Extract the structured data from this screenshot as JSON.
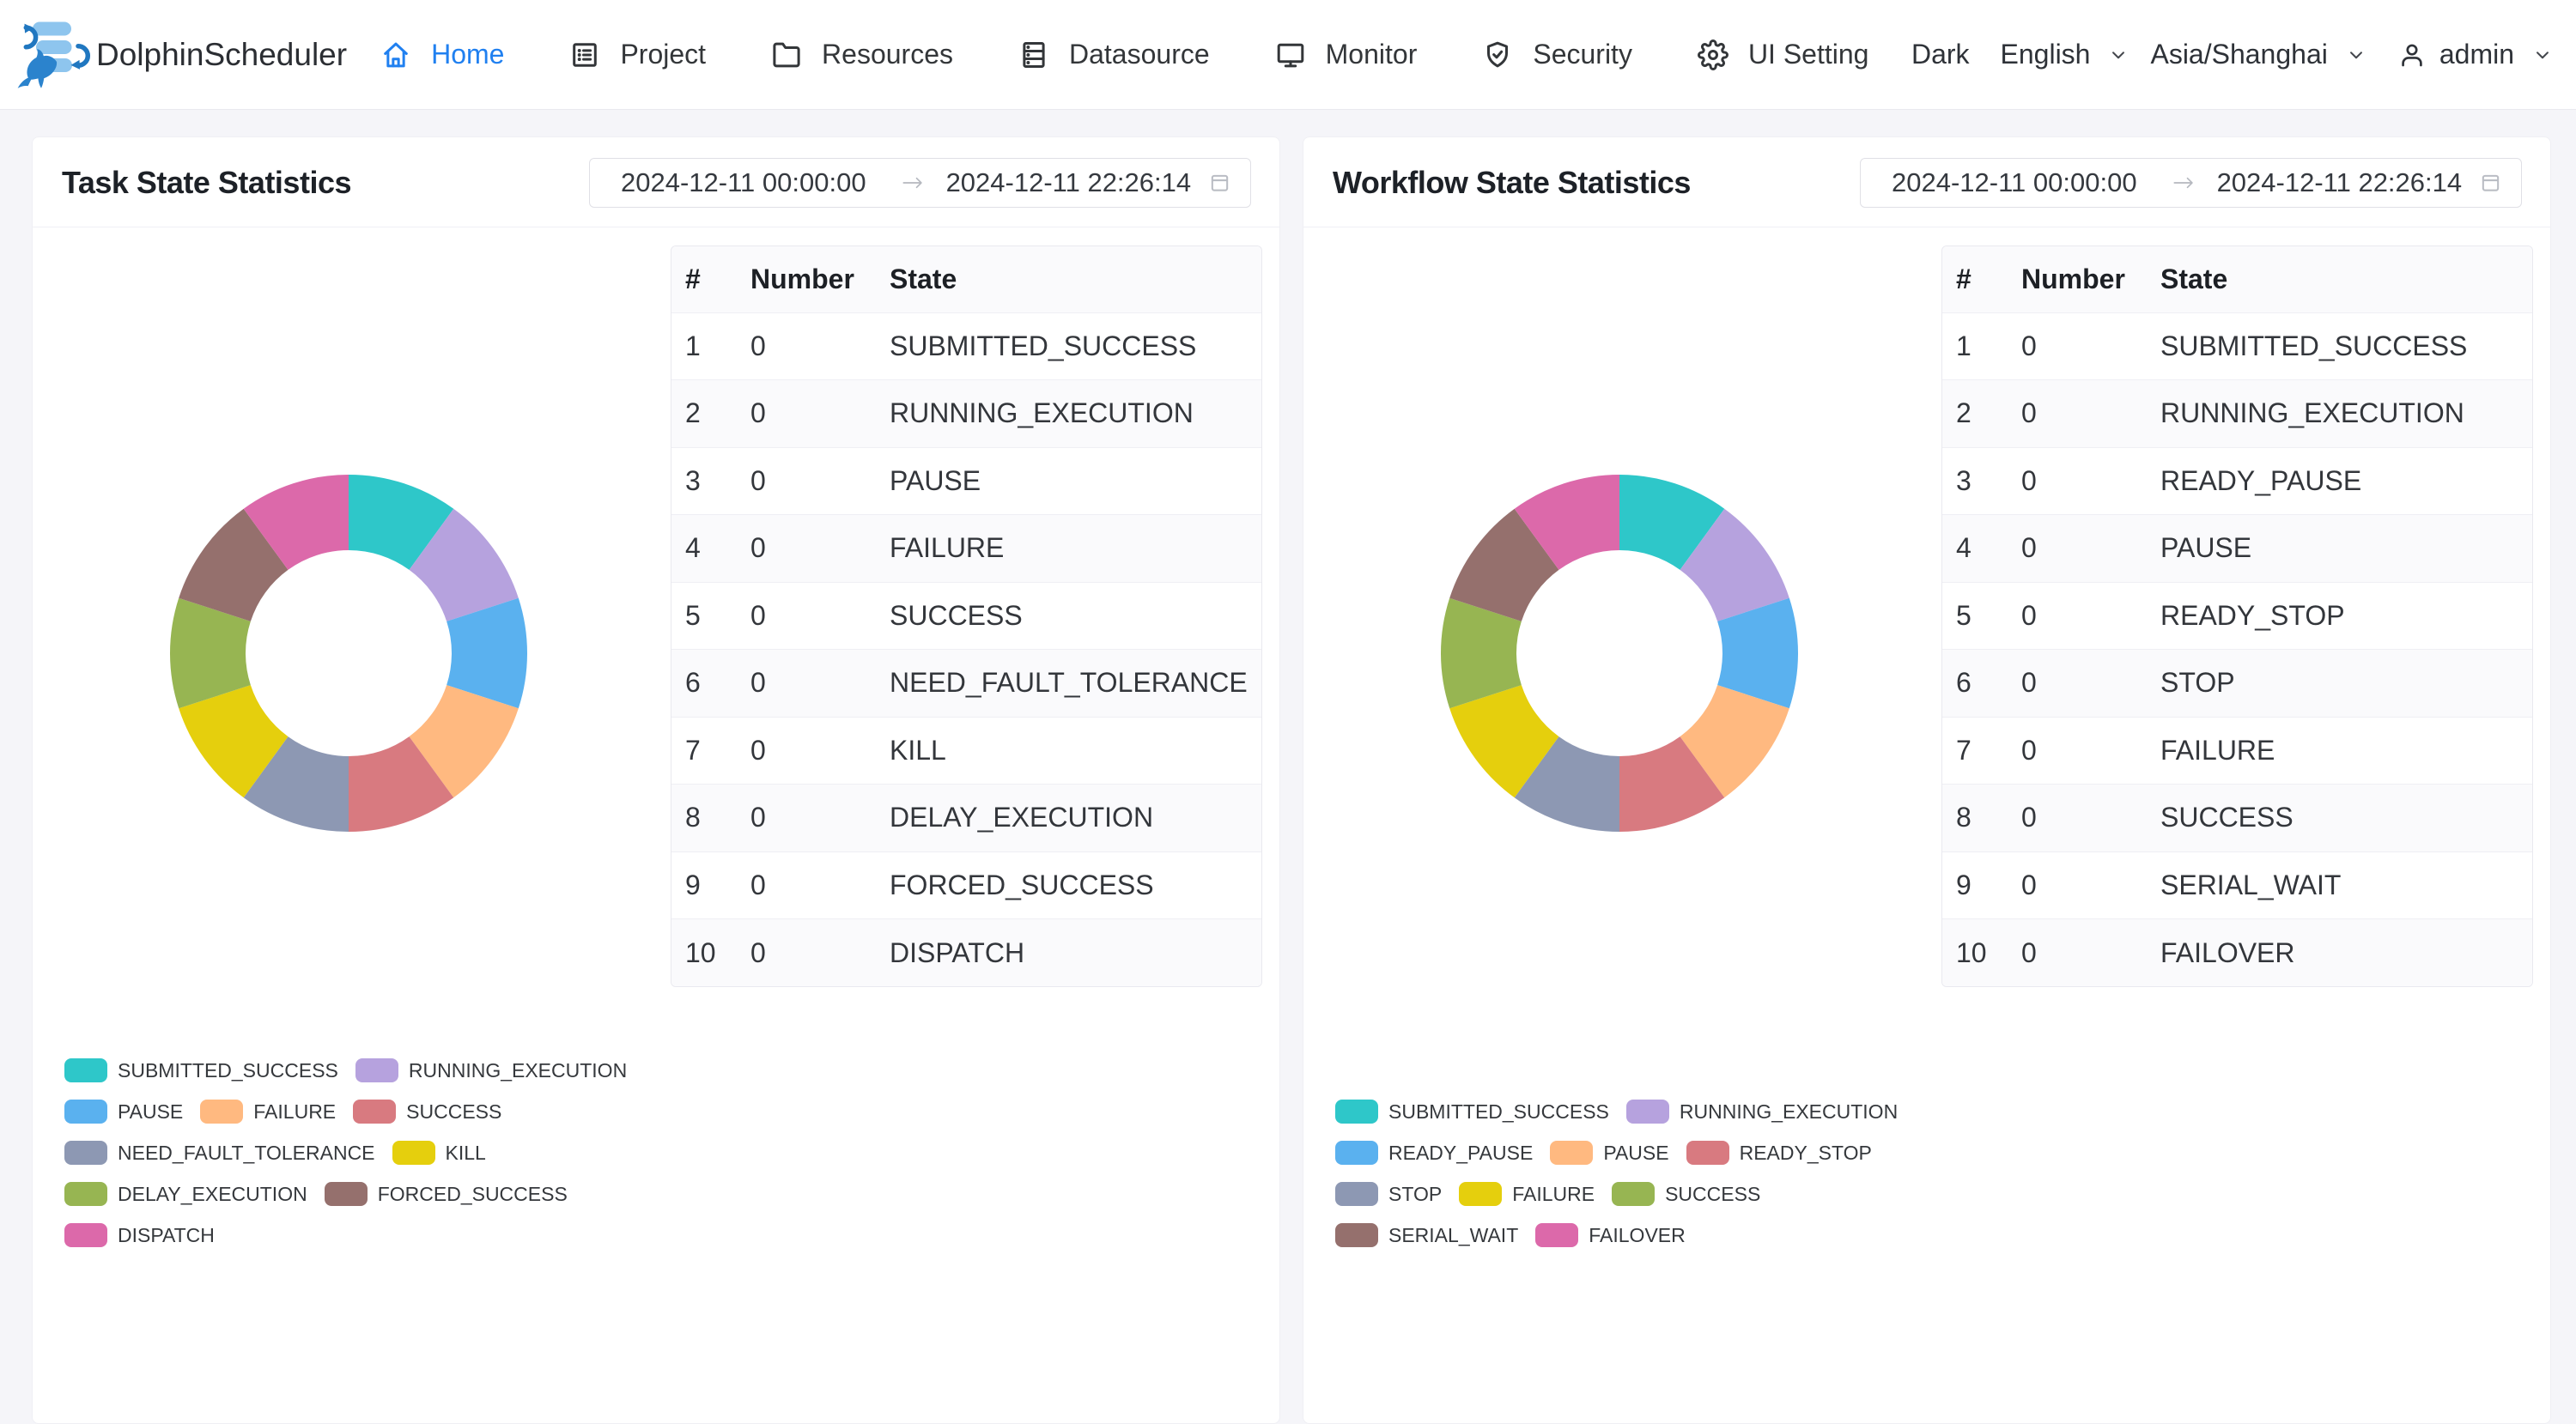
{
  "navbar": {
    "brand": "DolphinScheduler",
    "items": [
      {
        "label": "Home",
        "active": true
      },
      {
        "label": "Project",
        "active": false
      },
      {
        "label": "Resources",
        "active": false
      },
      {
        "label": "Datasource",
        "active": false
      },
      {
        "label": "Monitor",
        "active": false
      },
      {
        "label": "Security",
        "active": false
      },
      {
        "label": "UI Setting",
        "active": false
      }
    ],
    "theme_toggle_label": "Dark",
    "language": "English",
    "timezone": "Asia/Shanghai",
    "user": "admin",
    "active_color": "#2080f0"
  },
  "table_columns": [
    "#",
    "Number",
    "State"
  ],
  "chart_data": [
    {
      "type": "pie",
      "variant": "donut",
      "title": "Task State Statistics",
      "date_start": "2024-12-11 00:00:00",
      "date_end": "2024-12-11 22:26:14",
      "categories": [
        "SUBMITTED_SUCCESS",
        "RUNNING_EXECUTION",
        "PAUSE",
        "FAILURE",
        "SUCCESS",
        "NEED_FAULT_TOLERANCE",
        "KILL",
        "DELAY_EXECUTION",
        "FORCED_SUCCESS",
        "DISPATCH"
      ],
      "values": [
        0,
        0,
        0,
        0,
        0,
        0,
        0,
        0,
        0,
        0
      ],
      "colors": [
        "#2ec7c9",
        "#b6a2de",
        "#5ab1ef",
        "#ffb980",
        "#d87a80",
        "#8d98b3",
        "#e5cf0d",
        "#97b552",
        "#95706d",
        "#dc69aa"
      ],
      "legend_position": "bottom-left",
      "note": "all values are 0 - donut rendered as 10 equal slices, clockwise from top",
      "legend_rows": [
        [
          "SUBMITTED_SUCCESS",
          "RUNNING_EXECUTION"
        ],
        [
          "PAUSE",
          "FAILURE",
          "SUCCESS"
        ],
        [
          "NEED_FAULT_TOLERANCE",
          "KILL"
        ],
        [
          "DELAY_EXECUTION",
          "FORCED_SUCCESS"
        ],
        [
          "DISPATCH"
        ]
      ]
    },
    {
      "type": "pie",
      "variant": "donut",
      "title": "Workflow State Statistics",
      "date_start": "2024-12-11 00:00:00",
      "date_end": "2024-12-11 22:26:14",
      "categories": [
        "SUBMITTED_SUCCESS",
        "RUNNING_EXECUTION",
        "READY_PAUSE",
        "PAUSE",
        "READY_STOP",
        "STOP",
        "FAILURE",
        "SUCCESS",
        "SERIAL_WAIT",
        "FAILOVER"
      ],
      "values": [
        0,
        0,
        0,
        0,
        0,
        0,
        0,
        0,
        0,
        0
      ],
      "colors": [
        "#2ec7c9",
        "#b6a2de",
        "#5ab1ef",
        "#ffb980",
        "#d87a80",
        "#8d98b3",
        "#e5cf0d",
        "#97b552",
        "#95706d",
        "#dc69aa"
      ],
      "legend_position": "bottom-left",
      "note": "all values are 0 - donut rendered as 10 equal slices, clockwise from top",
      "legend_rows": [
        [
          "SUBMITTED_SUCCESS",
          "RUNNING_EXECUTION"
        ],
        [
          "READY_PAUSE",
          "PAUSE",
          "READY_STOP"
        ],
        [
          "STOP",
          "FAILURE",
          "SUCCESS"
        ],
        [
          "SERIAL_WAIT",
          "FAILOVER"
        ]
      ]
    }
  ]
}
